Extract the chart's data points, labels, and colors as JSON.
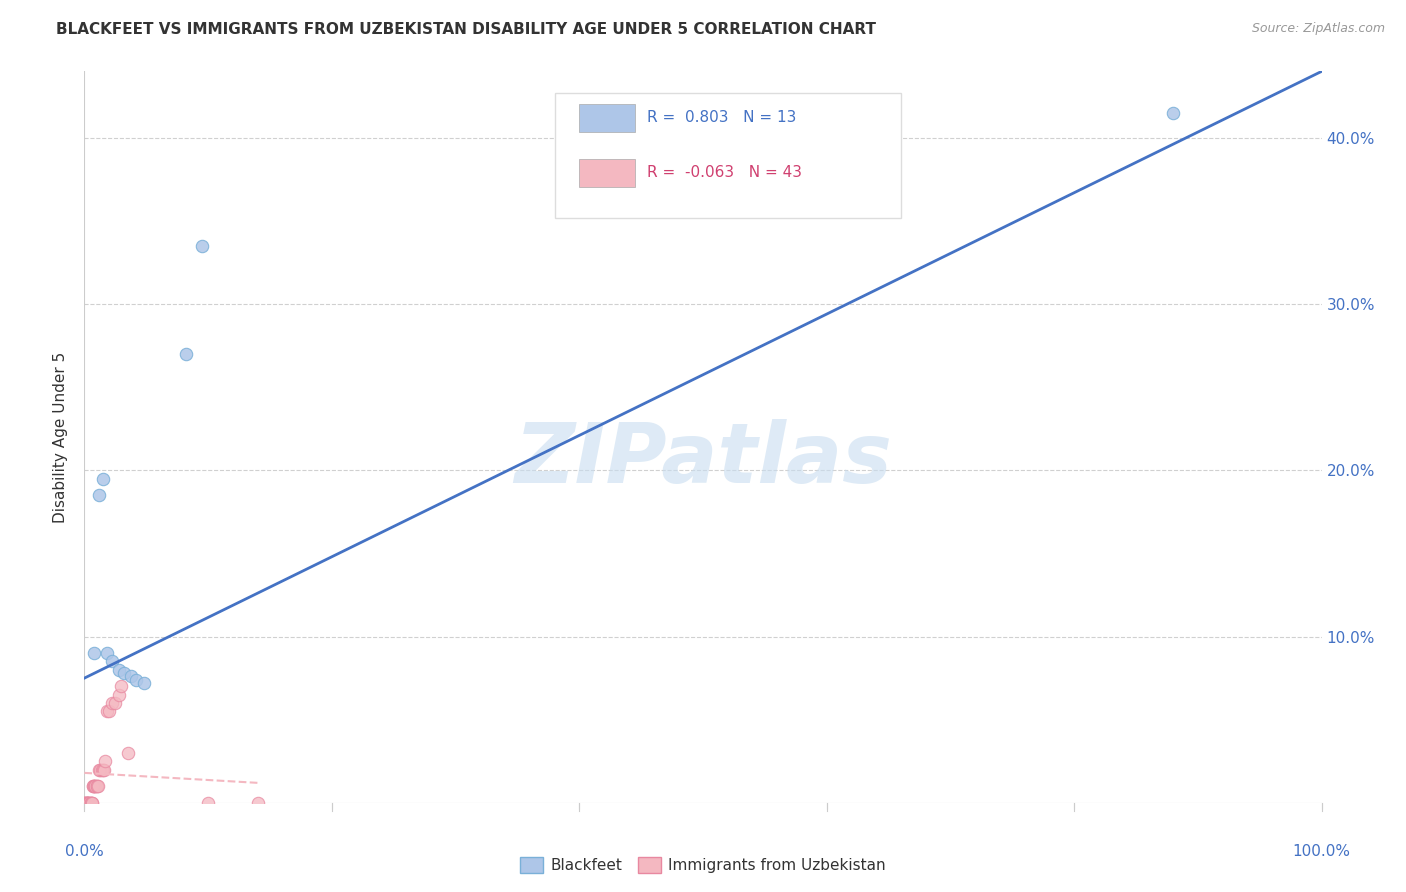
{
  "title": "BLACKFEET VS IMMIGRANTS FROM UZBEKISTAN DISABILITY AGE UNDER 5 CORRELATION CHART",
  "source": "Source: ZipAtlas.com",
  "ylabel": "Disability Age Under 5",
  "xlim": [
    0.0,
    1.0
  ],
  "ylim": [
    0.0,
    0.44
  ],
  "xticks": [
    0.0,
    0.2,
    0.4,
    0.6,
    0.8,
    1.0
  ],
  "xticklabels_outer": [
    "0.0%",
    "",
    "",
    "",
    "",
    "100.0%"
  ],
  "yticks": [
    0.0,
    0.1,
    0.2,
    0.3,
    0.4
  ],
  "yticklabels_right": [
    "",
    "10.0%",
    "20.0%",
    "30.0%",
    "40.0%"
  ],
  "watermark": "ZIPatlas",
  "legend_entries": [
    {
      "label": "Blackfeet",
      "color": "#aec6e8",
      "edge_color": "#7ab0d8",
      "R": "0.803",
      "N": "13"
    },
    {
      "label": "Immigrants from Uzbekistan",
      "color": "#f4b8c1",
      "edge_color": "#e888a0",
      "R": "-0.063",
      "N": "43"
    }
  ],
  "blackfeet_scatter_x": [
    0.008,
    0.012,
    0.015,
    0.018,
    0.022,
    0.028,
    0.032,
    0.038,
    0.042,
    0.048,
    0.082,
    0.095,
    0.88
  ],
  "blackfeet_scatter_y": [
    0.09,
    0.185,
    0.195,
    0.09,
    0.085,
    0.08,
    0.078,
    0.076,
    0.074,
    0.072,
    0.27,
    0.335,
    0.415
  ],
  "uzbek_scatter_x": [
    0.0,
    0.0,
    0.0,
    0.001,
    0.001,
    0.001,
    0.002,
    0.002,
    0.002,
    0.003,
    0.003,
    0.003,
    0.004,
    0.004,
    0.005,
    0.005,
    0.005,
    0.006,
    0.006,
    0.007,
    0.007,
    0.008,
    0.008,
    0.009,
    0.009,
    0.01,
    0.01,
    0.011,
    0.012,
    0.013,
    0.014,
    0.015,
    0.016,
    0.017,
    0.018,
    0.02,
    0.022,
    0.025,
    0.028,
    0.03,
    0.035,
    0.1,
    0.14
  ],
  "uzbek_scatter_y": [
    0.0,
    0.0,
    0.0,
    0.0,
    0.0,
    0.0,
    0.0,
    0.0,
    0.0,
    0.0,
    0.0,
    0.0,
    0.0,
    0.0,
    0.0,
    0.0,
    0.0,
    0.0,
    0.0,
    0.01,
    0.01,
    0.01,
    0.01,
    0.01,
    0.01,
    0.01,
    0.01,
    0.01,
    0.02,
    0.02,
    0.02,
    0.02,
    0.02,
    0.025,
    0.055,
    0.055,
    0.06,
    0.06,
    0.065,
    0.07,
    0.03,
    0.0,
    0.0
  ],
  "blackfeet_line_x": [
    0.0,
    1.0
  ],
  "blackfeet_line_y": [
    0.075,
    0.44
  ],
  "uzbek_line_x": [
    0.0,
    0.14
  ],
  "uzbek_line_y": [
    0.018,
    0.012
  ],
  "grid_color": "#d0d0d0",
  "scatter_size": 80,
  "title_fontsize": 11,
  "axis_tick_color": "#4472c4",
  "background_color": "#ffffff",
  "bottom_legend_labels": [
    "Blackfeet",
    "Immigrants from Uzbekistan"
  ]
}
